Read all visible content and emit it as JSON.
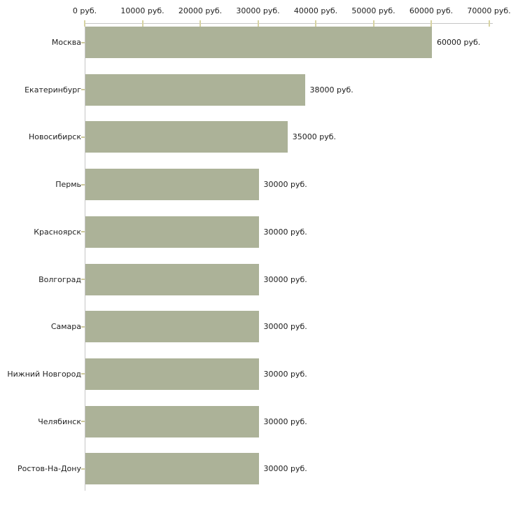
{
  "chart_data": {
    "type": "bar",
    "orientation": "horizontal",
    "title": "",
    "xlabel": "",
    "ylabel": "",
    "unit_suffix": " руб.",
    "categories": [
      "Москва",
      "Екатеринбург",
      "Новосибирск",
      "Пермь",
      "Красноярск",
      "Волгоград",
      "Самара",
      "Нижний Новгород",
      "Челябинск",
      "Ростов-На-Дону"
    ],
    "values": [
      60000,
      38000,
      35000,
      30000,
      30000,
      30000,
      30000,
      30000,
      30000,
      30000
    ],
    "value_labels": [
      "60000 руб.",
      "38000 руб.",
      "35000 руб.",
      "30000 руб.",
      "30000 руб.",
      "30000 руб.",
      "30000 руб.",
      "30000 руб.",
      "30000 руб.",
      "30000 руб."
    ],
    "x_axis": {
      "position": "top",
      "range": [
        0,
        70000
      ],
      "ticks": [
        0,
        10000,
        20000,
        30000,
        40000,
        50000,
        60000,
        70000
      ],
      "tick_labels": [
        "0 руб.",
        "10000 руб.",
        "20000 руб.",
        "30000 руб.",
        "40000 руб.",
        "50000 руб.",
        "60000 руб.",
        "70000 руб."
      ]
    },
    "grid": false,
    "legend": null,
    "colors": {
      "bar": "#acb298",
      "axis": "#c6c6c6",
      "x_tick": "#d7d3a2",
      "y_tick": "#cdc99b",
      "text": "#222222",
      "background": "#ffffff"
    }
  }
}
